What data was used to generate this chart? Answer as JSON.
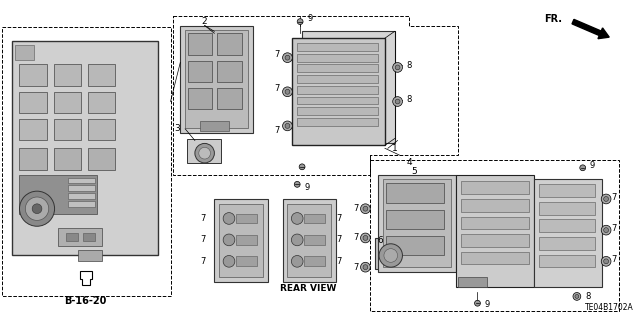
{
  "bg_color": "#ffffff",
  "fig_width": 6.4,
  "fig_height": 3.19,
  "diagram_id": "TE04B1702A",
  "fr_label": "FR.",
  "b_label": "B-16-20",
  "rear_view_label": "REAR VIEW",
  "gray_part": "#c8c8c8",
  "dark_gray": "#888888",
  "mid_gray": "#aaaaaa",
  "light_gray": "#dddddd"
}
